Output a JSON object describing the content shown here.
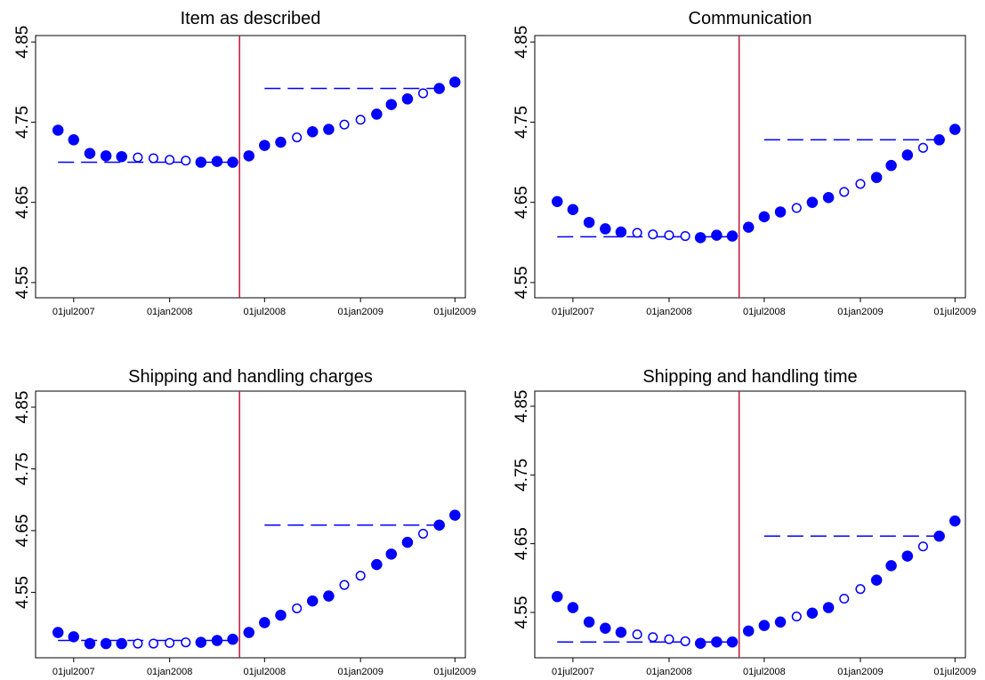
{
  "chart_data": [
    {
      "type": "scatter",
      "title": "Item as described",
      "color": "#0000ff",
      "x": [
        "2007-06-01",
        "2007-07-01",
        "2007-08-01",
        "2007-09-01",
        "2007-10-01",
        "2007-11-01",
        "2007-12-01",
        "2008-01-01",
        "2008-02-01",
        "2008-03-01",
        "2008-04-01",
        "2008-05-01",
        "2008-06-01",
        "2008-07-01",
        "2008-08-01",
        "2008-09-01",
        "2008-10-01",
        "2008-11-01",
        "2008-12-01",
        "2009-01-01",
        "2009-02-01",
        "2009-03-01",
        "2009-04-01",
        "2009-05-01",
        "2009-06-01",
        "2009-07-01"
      ],
      "values": [
        4.74,
        4.728,
        4.711,
        4.708,
        4.707,
        4.706,
        4.705,
        4.703,
        4.702,
        4.7,
        4.701,
        4.7,
        4.708,
        4.721,
        4.725,
        4.731,
        4.738,
        4.741,
        4.747,
        4.753,
        4.76,
        4.772,
        4.779,
        4.786,
        4.792,
        4.8
      ],
      "filled": [
        true,
        true,
        true,
        true,
        true,
        false,
        false,
        false,
        false,
        true,
        true,
        true,
        true,
        true,
        true,
        false,
        true,
        true,
        false,
        false,
        true,
        true,
        true,
        false,
        true,
        true
      ],
      "hlines": [
        {
          "y": 4.7,
          "x": [
            "2007-06-01",
            "2008-05-01"
          ]
        },
        {
          "y": 4.792,
          "x": [
            "2008-07-01",
            "2009-06-01"
          ]
        }
      ],
      "vline": {
        "x": "2008-05-14",
        "color": "#c0143c"
      },
      "xlim": [
        "2007-04-19",
        "2009-07-21"
      ],
      "ylim": [
        4.531,
        4.858
      ],
      "yticks": [
        4.55,
        4.65,
        4.75,
        4.85
      ],
      "xticks": [
        {
          "value": "2007-07-01",
          "label": "01jul2007"
        },
        {
          "value": "2008-01-01",
          "label": "01jan2008"
        },
        {
          "value": "2008-07-01",
          "label": "01jul2008"
        },
        {
          "value": "2009-01-01",
          "label": "01jan2009"
        },
        {
          "value": "2009-07-01",
          "label": "01jul2009"
        }
      ]
    },
    {
      "type": "scatter",
      "title": "Communication",
      "color": "#0000ff",
      "x": [
        "2007-06-01",
        "2007-07-01",
        "2007-08-01",
        "2007-09-01",
        "2007-10-01",
        "2007-11-01",
        "2007-12-01",
        "2008-01-01",
        "2008-02-01",
        "2008-03-01",
        "2008-04-01",
        "2008-05-01",
        "2008-06-01",
        "2008-07-01",
        "2008-08-01",
        "2008-09-01",
        "2008-10-01",
        "2008-11-01",
        "2008-12-01",
        "2009-01-01",
        "2009-02-01",
        "2009-03-01",
        "2009-04-01",
        "2009-05-01",
        "2009-06-01",
        "2009-07-01"
      ],
      "values": [
        4.651,
        4.641,
        4.625,
        4.617,
        4.613,
        4.612,
        4.61,
        4.609,
        4.608,
        4.606,
        4.609,
        4.608,
        4.619,
        4.632,
        4.638,
        4.643,
        4.65,
        4.656,
        4.663,
        4.673,
        4.681,
        4.696,
        4.709,
        4.718,
        4.728,
        4.741
      ],
      "filled": [
        true,
        true,
        true,
        true,
        true,
        false,
        false,
        false,
        false,
        true,
        true,
        true,
        true,
        true,
        true,
        false,
        true,
        true,
        false,
        false,
        true,
        true,
        true,
        false,
        true,
        true
      ],
      "hlines": [
        {
          "y": 4.607,
          "x": [
            "2007-06-01",
            "2008-05-01"
          ]
        },
        {
          "y": 4.728,
          "x": [
            "2008-07-01",
            "2009-06-01"
          ]
        }
      ],
      "vline": {
        "x": "2008-05-14",
        "color": "#c0143c"
      },
      "xlim": [
        "2007-04-19",
        "2009-07-21"
      ],
      "ylim": [
        4.531,
        4.858
      ],
      "yticks": [
        4.55,
        4.65,
        4.75,
        4.85
      ],
      "xticks": [
        {
          "value": "2007-07-01",
          "label": "01jul2007"
        },
        {
          "value": "2008-01-01",
          "label": "01jan2008"
        },
        {
          "value": "2008-07-01",
          "label": "01jul2008"
        },
        {
          "value": "2009-01-01",
          "label": "01jan2009"
        },
        {
          "value": "2009-07-01",
          "label": "01jul2009"
        }
      ]
    },
    {
      "type": "scatter",
      "title": "Shipping and handling charges",
      "color": "#0000ff",
      "x": [
        "2007-06-01",
        "2007-07-01",
        "2007-08-01",
        "2007-09-01",
        "2007-10-01",
        "2007-11-01",
        "2007-12-01",
        "2008-01-01",
        "2008-02-01",
        "2008-03-01",
        "2008-04-01",
        "2008-05-01",
        "2008-06-01",
        "2008-07-01",
        "2008-08-01",
        "2008-09-01",
        "2008-10-01",
        "2008-11-01",
        "2008-12-01",
        "2009-01-01",
        "2009-02-01",
        "2009-03-01",
        "2009-04-01",
        "2009-05-01",
        "2009-06-01",
        "2009-07-01"
      ],
      "values": [
        4.485,
        4.478,
        4.467,
        4.467,
        4.467,
        4.467,
        4.467,
        4.468,
        4.469,
        4.469,
        4.472,
        4.474,
        4.485,
        4.501,
        4.513,
        4.524,
        4.536,
        4.544,
        4.562,
        4.577,
        4.595,
        4.612,
        4.631,
        4.645,
        4.659,
        4.675
      ],
      "filled": [
        true,
        true,
        true,
        true,
        true,
        false,
        false,
        false,
        false,
        true,
        true,
        true,
        true,
        true,
        true,
        false,
        true,
        true,
        false,
        false,
        true,
        true,
        true,
        false,
        true,
        true
      ],
      "hlines": [
        {
          "y": 4.472,
          "x": [
            "2007-06-01",
            "2008-05-01"
          ]
        },
        {
          "y": 4.659,
          "x": [
            "2008-07-01",
            "2009-06-01"
          ]
        }
      ],
      "vline": {
        "x": "2008-05-14",
        "color": "#c0143c"
      },
      "xlim": [
        "2007-04-19",
        "2009-07-21"
      ],
      "ylim": [
        4.444,
        4.876
      ],
      "yticks": [
        4.55,
        4.65,
        4.75,
        4.85
      ],
      "xticks": [
        {
          "value": "2007-07-01",
          "label": "01jul2007"
        },
        {
          "value": "2008-01-01",
          "label": "01jan2008"
        },
        {
          "value": "2008-07-01",
          "label": "01jul2008"
        },
        {
          "value": "2009-01-01",
          "label": "01jan2009"
        },
        {
          "value": "2009-07-01",
          "label": "01jul2009"
        }
      ]
    },
    {
      "type": "scatter",
      "title": "Shipping and handling time",
      "color": "#0000ff",
      "x": [
        "2007-06-01",
        "2007-07-01",
        "2007-08-01",
        "2007-09-01",
        "2007-10-01",
        "2007-11-01",
        "2007-12-01",
        "2008-01-01",
        "2008-02-01",
        "2008-03-01",
        "2008-04-01",
        "2008-05-01",
        "2008-06-01",
        "2008-07-01",
        "2008-08-01",
        "2008-09-01",
        "2008-10-01",
        "2008-11-01",
        "2008-12-01",
        "2009-01-01",
        "2009-02-01",
        "2009-03-01",
        "2009-04-01",
        "2009-05-01",
        "2009-06-01",
        "2009-07-01"
      ],
      "values": [
        4.573,
        4.557,
        4.536,
        4.527,
        4.521,
        4.518,
        4.514,
        4.511,
        4.508,
        4.505,
        4.507,
        4.507,
        4.523,
        4.531,
        4.536,
        4.544,
        4.549,
        4.557,
        4.57,
        4.584,
        4.597,
        4.618,
        4.632,
        4.646,
        4.661,
        4.683
      ],
      "filled": [
        true,
        true,
        true,
        true,
        true,
        false,
        false,
        false,
        false,
        true,
        true,
        true,
        true,
        true,
        true,
        false,
        true,
        true,
        false,
        false,
        true,
        true,
        true,
        false,
        true,
        true
      ],
      "hlines": [
        {
          "y": 4.507,
          "x": [
            "2007-06-01",
            "2008-05-01"
          ]
        },
        {
          "y": 4.661,
          "x": [
            "2008-07-01",
            "2009-06-01"
          ]
        }
      ],
      "vline": {
        "x": "2008-05-14",
        "color": "#c0143c"
      },
      "xlim": [
        "2007-04-19",
        "2009-07-21"
      ],
      "ylim": [
        4.484,
        4.872
      ],
      "yticks": [
        4.55,
        4.65,
        4.75,
        4.85
      ],
      "xticks": [
        {
          "value": "2007-07-01",
          "label": "01jul2007"
        },
        {
          "value": "2008-01-01",
          "label": "01jan2008"
        },
        {
          "value": "2008-07-01",
          "label": "01jul2008"
        },
        {
          "value": "2009-01-01",
          "label": "01jan2009"
        },
        {
          "value": "2009-07-01",
          "label": "01jul2009"
        }
      ]
    }
  ]
}
